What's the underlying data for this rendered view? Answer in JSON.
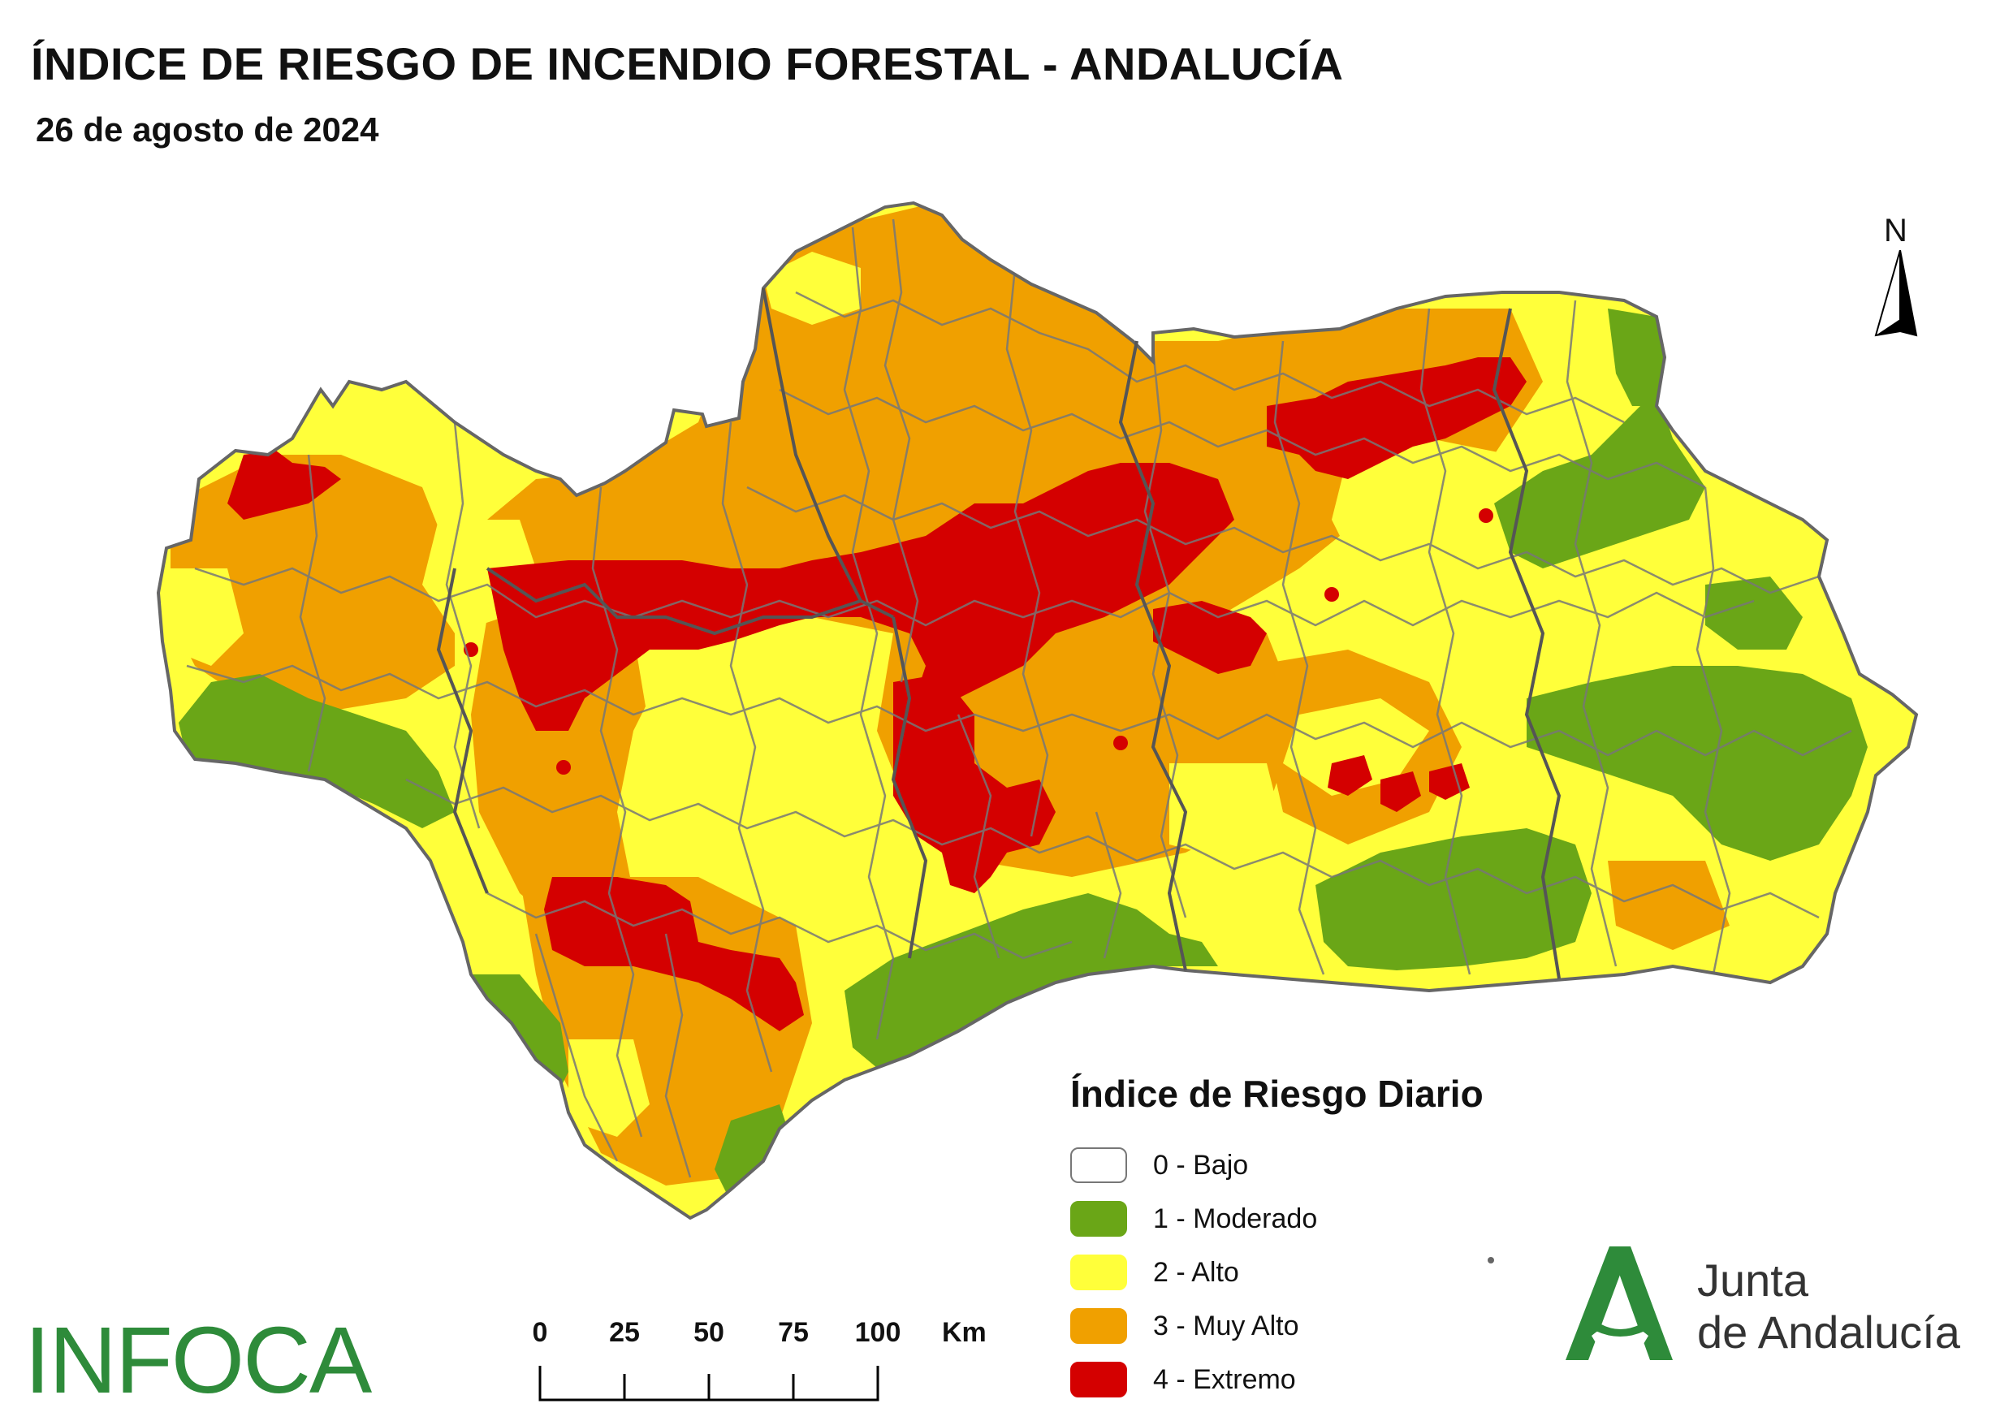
{
  "header": {
    "title": "ÍNDICE DE RIESGO DE INCENDIO FORESTAL - ANDALUCÍA",
    "date": "26 de agosto de 2024"
  },
  "legend": {
    "title": "Índice de Riesgo Diario",
    "items": [
      {
        "label": "0 - Bajo",
        "color": "#ffffff"
      },
      {
        "label": "1 - Moderado",
        "color": "#6aa617"
      },
      {
        "label": "2 - Alto",
        "color": "#ffff3a"
      },
      {
        "label": "3 - Muy Alto",
        "color": "#f0a000"
      },
      {
        "label": "4 - Extremo",
        "color": "#d40000"
      }
    ]
  },
  "scale_bar": {
    "ticks": [
      "0",
      "25",
      "50",
      "75",
      "100"
    ],
    "unit": "Km"
  },
  "north_arrow": {
    "label": "N"
  },
  "logos": {
    "infoca": "INFOCA",
    "junta_line1": "Junta",
    "junta_line2": "de Andalucía"
  },
  "colors": {
    "border": "#666666",
    "green": "#6aa617",
    "yellow": "#ffff3a",
    "orange": "#f0a000",
    "red": "#d40000",
    "junta_green": "#2e8b3a"
  }
}
